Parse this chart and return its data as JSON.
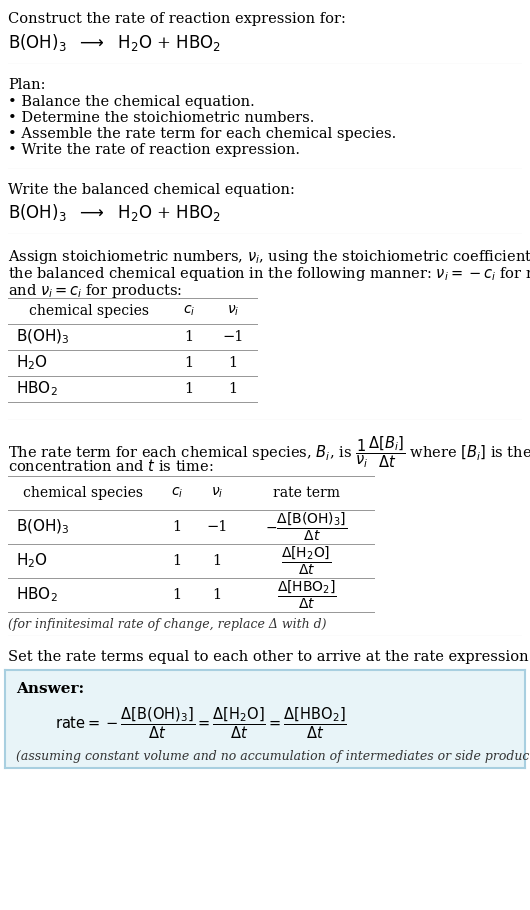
{
  "bg_color": "#ffffff",
  "answer_bg": "#e8f4f8",
  "answer_border": "#a8cfe0",
  "title_text": "Construct the rate of reaction expression for:",
  "plan_header": "Plan:",
  "plan_items": [
    "• Balance the chemical equation.",
    "• Determine the stoichiometric numbers.",
    "• Assemble the rate term for each chemical species.",
    "• Write the rate of reaction expression."
  ],
  "section2_header": "Write the balanced chemical equation:",
  "table1_rows": [
    [
      "B(OH)₃",
      "1",
      "−1"
    ],
    [
      "H₂O",
      "1",
      "1"
    ],
    [
      "HBO₂",
      "1",
      "1"
    ]
  ],
  "table2_rows": [
    [
      "B(OH)₃",
      "1",
      "−1"
    ],
    [
      "H₂O",
      "1",
      "1"
    ],
    [
      "HBO₂",
      "1",
      "1"
    ]
  ],
  "infinitesimal_note": "(for infinitesimal rate of change, replace Δ with d)",
  "section5_text": "Set the rate terms equal to each other to arrive at the rate expression:",
  "answer_label": "Answer:",
  "answer_note": "(assuming constant volume and no accumulation of intermediates or side products)"
}
